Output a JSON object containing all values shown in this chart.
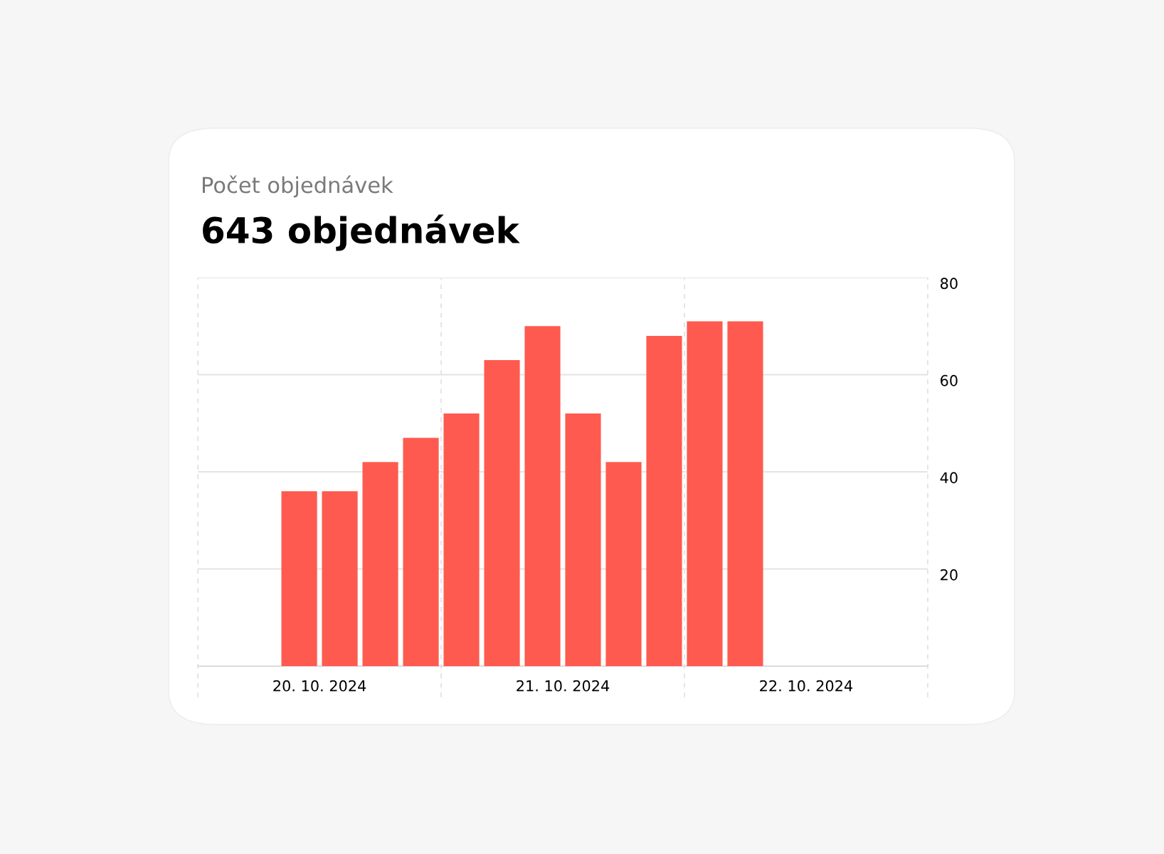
{
  "chart_data": {
    "type": "bar",
    "title": "Počet objednávek",
    "subtitle": "643 objednávek",
    "x": [
      "2024-10-20T10:00",
      "2024-10-20T14:00",
      "2024-10-20T18:00",
      "2024-10-20T22:00",
      "2024-10-21T02:00",
      "2024-10-21T06:00",
      "2024-10-21T10:00",
      "2024-10-21T14:00",
      "2024-10-21T18:00",
      "2024-10-21T22:00",
      "2024-10-22T02:00",
      "2024-10-22T06:00"
    ],
    "values": [
      36,
      36,
      42,
      47,
      52,
      63,
      70,
      52,
      42,
      68,
      71,
      71
    ],
    "color": "#ff5a4f",
    "xlim": [
      "2024-10-20T00:00",
      "2024-10-23T00:00"
    ],
    "xticks": [
      {
        "value": "2024-10-20T12:00",
        "label": "20. 10. 2024"
      },
      {
        "value": "2024-10-21T12:00",
        "label": "21. 10. 2024"
      },
      {
        "value": "2024-10-22T12:00",
        "label": "22. 10. 2024"
      }
    ],
    "ylim": [
      0,
      80
    ],
    "yticks": [
      20,
      40,
      60,
      80
    ],
    "ref_lines": [
      {
        "axis": "x",
        "value": "2024-10-20T00:00",
        "color": "#e0e0e0",
        "line_style": "dashed"
      },
      {
        "axis": "x",
        "value": "2024-10-21T00:00",
        "color": "#e0e0e0",
        "line_style": "dashed"
      },
      {
        "axis": "x",
        "value": "2024-10-22T00:00",
        "color": "#e0e0e0",
        "line_style": "dashed"
      },
      {
        "axis": "x",
        "value": "2024-10-23T00:00",
        "color": "#e0e0e0",
        "line_style": "dashed"
      }
    ],
    "grid": "y",
    "legend": false
  }
}
